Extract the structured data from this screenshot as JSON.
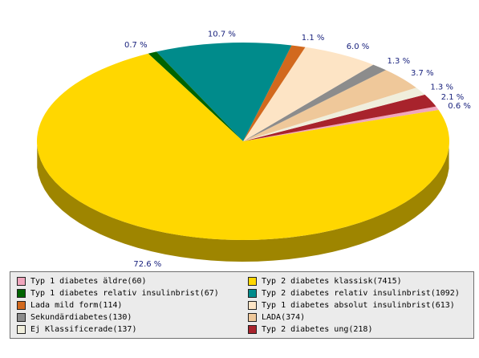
{
  "chart_data": {
    "type": "pie",
    "title": "",
    "slices": [
      {
        "label": "Typ 1 diabetes äldre",
        "count": "(60)",
        "percent": 0.6,
        "pct_text": "0.6 %",
        "color": "#f0a6bd"
      },
      {
        "label": "Typ 2 diabetes ung",
        "count": "(218)",
        "percent": 2.1,
        "pct_text": "2.1 %",
        "color": "#a8232c"
      },
      {
        "label": "Ej Klassificerade",
        "count": "(137)",
        "percent": 1.3,
        "pct_text": "1.3 %",
        "color": "#f0eedc"
      },
      {
        "label": "LADA",
        "count": "(374)",
        "percent": 3.7,
        "pct_text": "3.7 %",
        "color": "#efc89a"
      },
      {
        "label": "Sekundärdiabetes",
        "count": "(130)",
        "percent": 1.3,
        "pct_text": "1.3 %",
        "color": "#8c8c8c"
      },
      {
        "label": "Typ 1 diabetes absolut insulinbrist",
        "count": "(613)",
        "percent": 6.0,
        "pct_text": "6.0 %",
        "color": "#fde4c5"
      },
      {
        "label": "Lada mild form",
        "count": "(114)",
        "percent": 1.1,
        "pct_text": "1.1 %",
        "color": "#d2691e"
      },
      {
        "label": "Typ 2 diabetes relativ insulinbrist",
        "count": "(1092)",
        "percent": 10.7,
        "pct_text": "10.7 %",
        "color": "#008b8b"
      },
      {
        "label": "Typ 1 diabetes relativ insulinbrist",
        "count": "(67)",
        "percent": 0.7,
        "pct_text": "0.7 %",
        "color": "#006400"
      },
      {
        "label": "Typ 2 diabetes klassisk",
        "count": "(7415)",
        "percent": 72.6,
        "pct_text": "72.6 %",
        "color": "#ffd700"
      }
    ],
    "legend_order": [
      0,
      9,
      8,
      7,
      6,
      5,
      4,
      3,
      2,
      1
    ],
    "legend_position": "bottom"
  }
}
